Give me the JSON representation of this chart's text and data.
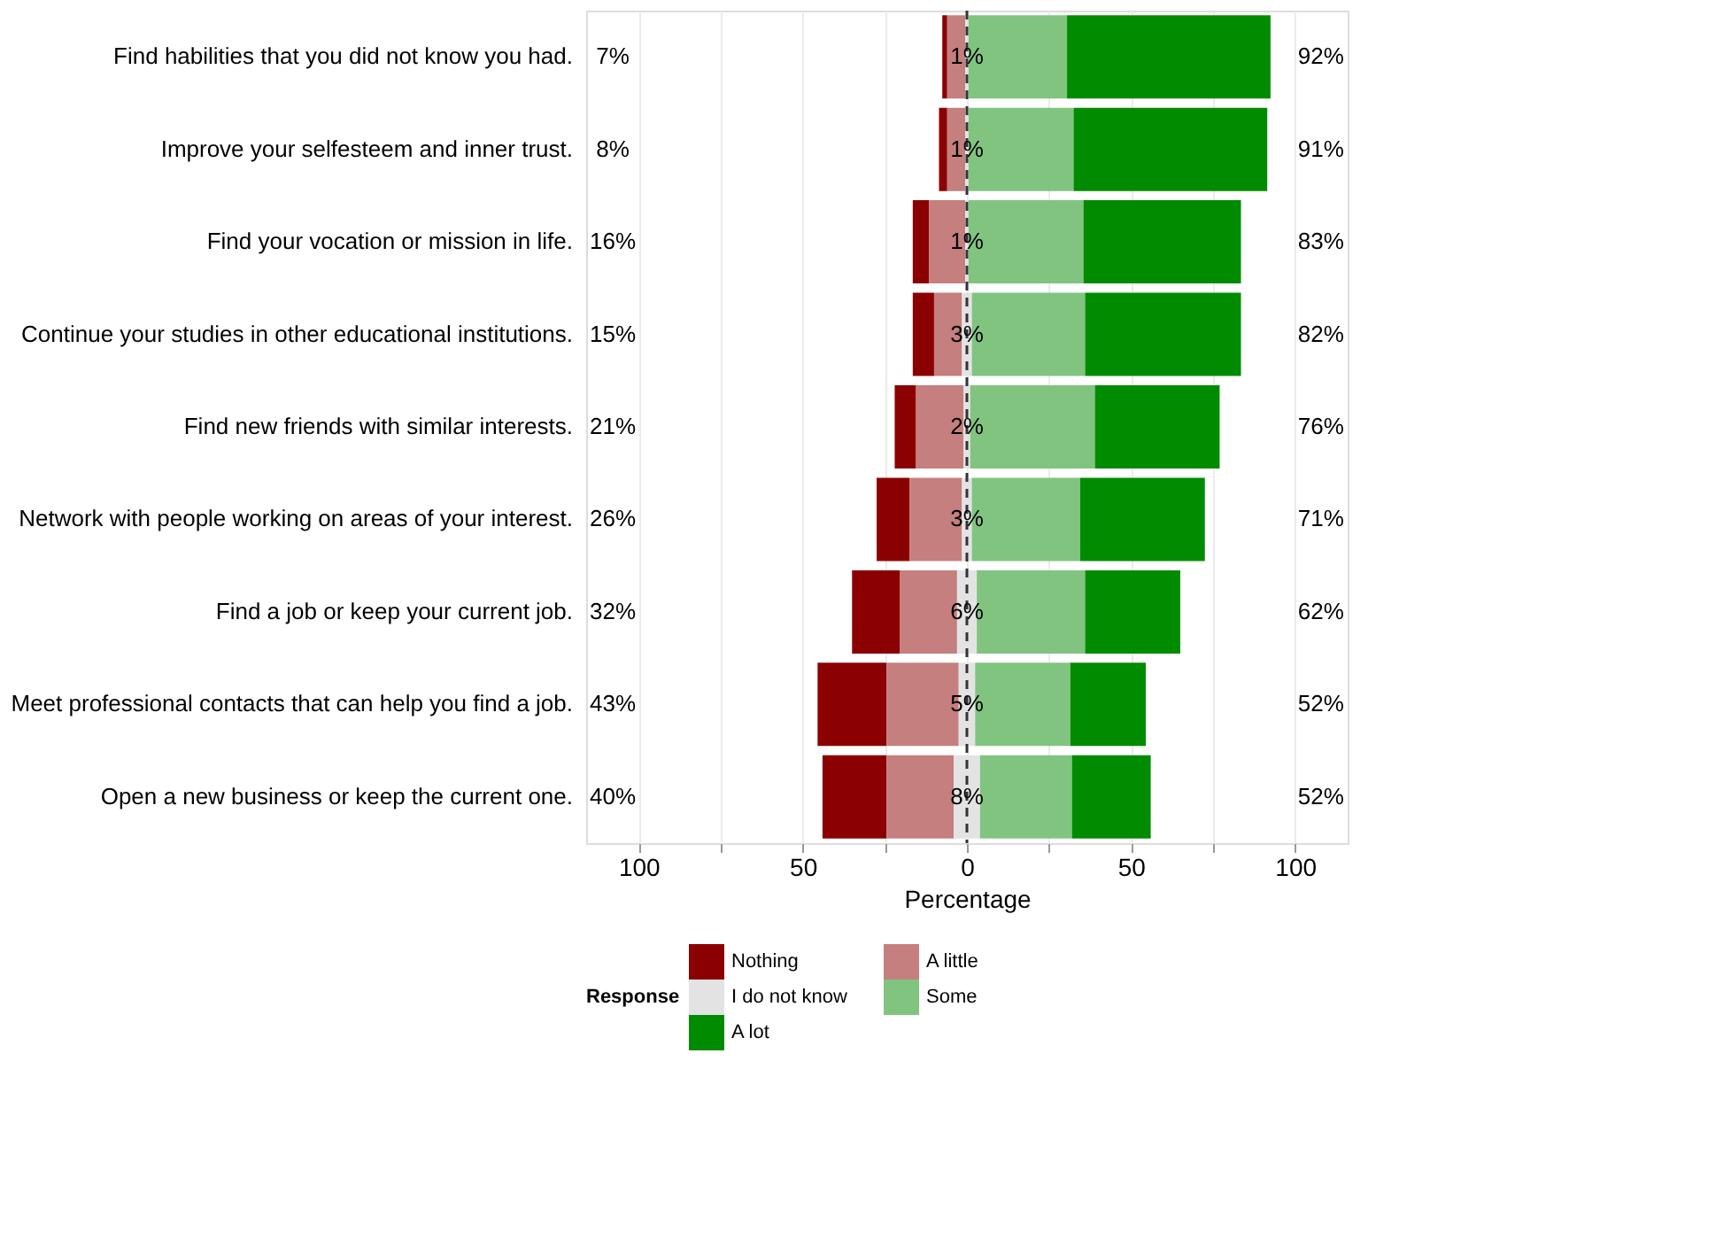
{
  "chart_data": {
    "type": "bar",
    "orientation": "horizontal",
    "stacked": true,
    "categories": [
      "Find habilities that you did not know you had.",
      "Improve your selfesteem and inner trust.",
      "Find your vocation or mission in life.",
      "Continue your studies in other educational institutions.",
      "Find new friends with similar interests.",
      "Network with people working on areas of your interest.",
      "Find a job or keep your current job.",
      "Meet professional contacts that can help you find a job.",
      "Open a new business or keep the current one."
    ],
    "series": [
      {
        "name": "Nothing",
        "color": "#8b0000",
        "base": [
          -7.5,
          -8.5,
          -16.5,
          -16.5,
          -22,
          -27.5,
          -35,
          -45.5,
          -44
        ],
        "values": [
          1.5,
          2.5,
          5,
          6.5,
          6.5,
          10,
          14.5,
          21,
          19.5
        ]
      },
      {
        "name": "A little",
        "color": "#c47f7e",
        "base": [
          -6,
          -6,
          -11.5,
          -10,
          -15.5,
          -17.5,
          -20.5,
          -24.5,
          -24.5
        ],
        "values": [
          5.5,
          5.5,
          11,
          8.5,
          14.5,
          16,
          17.5,
          22,
          20.5
        ]
      },
      {
        "name": "I do not know",
        "color": "#e3e3e3",
        "base": [
          -0.5,
          -0.5,
          -0.5,
          -1.5,
          -1,
          -1.5,
          -3,
          -2.5,
          -4
        ],
        "values": [
          1,
          1,
          1,
          3,
          2,
          3,
          6,
          5,
          8
        ],
        "value_labels": [
          "1%",
          "1%",
          "1%",
          "3%",
          "2%",
          "3%",
          "6%",
          "5%",
          "8%"
        ]
      },
      {
        "name": "Some",
        "color": "#80c480",
        "base": [
          0.5,
          0.5,
          0.5,
          1.5,
          1,
          1.5,
          3,
          2.5,
          4
        ],
        "values": [
          30,
          32,
          35,
          34.5,
          38,
          33,
          33,
          29,
          28
        ]
      },
      {
        "name": "A lot",
        "color": "#008b00",
        "base": [
          30.5,
          32.5,
          35.5,
          36,
          39,
          34.5,
          36,
          31.5,
          32
        ],
        "values": [
          62,
          59,
          48,
          47.5,
          38,
          38,
          29,
          23,
          24
        ]
      }
    ],
    "xlim": [
      -116,
      116
    ],
    "xticks": [
      {
        "value": -100,
        "label": "100"
      },
      {
        "value": -75,
        "label": null
      },
      {
        "value": -50,
        "label": "50"
      },
      {
        "value": -25,
        "label": null
      },
      0,
      {
        "value": 25,
        "label": null
      },
      50,
      {
        "value": 75,
        "label": null
      },
      100
    ],
    "xlabel": "Percentage",
    "legend_title": "Response",
    "legend": "bottom",
    "grid": "x",
    "ref_lines": [
      {
        "axis": "x",
        "value": 0,
        "color": "#333333",
        "line_style": "dashed"
      }
    ],
    "annotations": [
      "7%",
      "8%",
      "16%",
      "15%",
      "21%",
      "26%",
      "32%",
      "43%",
      "40%",
      "92%",
      "91%",
      "83%",
      "82%",
      "76%",
      "71%",
      "62%",
      "52%",
      "52%"
    ]
  }
}
